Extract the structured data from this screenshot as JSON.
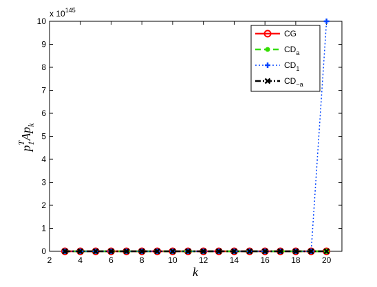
{
  "chart_data": {
    "type": "line",
    "xlabel": "k",
    "ylabel": {
      "base": "p",
      "sub1": "1",
      "sup": "T",
      "mid": "Ap",
      "sub2": "k"
    },
    "y_exponent": {
      "base": "x 10",
      "power": "145"
    },
    "x": [
      3,
      4,
      5,
      6,
      7,
      8,
      9,
      10,
      11,
      12,
      13,
      14,
      15,
      16,
      17,
      18,
      19,
      20
    ],
    "series": [
      {
        "name": "CG",
        "color": "#ff0000",
        "dash": "solid",
        "marker": "circle",
        "values": [
          0,
          0,
          0,
          0,
          0,
          0,
          0,
          0,
          0,
          0,
          0,
          0,
          0,
          0,
          0,
          0,
          0,
          0
        ]
      },
      {
        "name": "CD",
        "name_subscript": "a",
        "color": "#33dd00",
        "dash": "dashed",
        "marker": "dot",
        "values": [
          0,
          0,
          0,
          0,
          0,
          0,
          0,
          0,
          0,
          0,
          0,
          0,
          0,
          0,
          0,
          0,
          0,
          0
        ]
      },
      {
        "name": "CD",
        "name_subscript": "1",
        "color": "#0044ff",
        "dash": "dotted",
        "marker": "plus",
        "values": [
          0,
          0,
          0,
          0,
          0,
          0,
          0,
          0,
          0,
          0,
          0,
          0,
          0,
          0,
          0,
          0,
          0,
          10
        ]
      },
      {
        "name": "CD",
        "name_subscript": "−a",
        "color": "#000000",
        "dash": "dashdot",
        "marker": "cross",
        "values": [
          0,
          0,
          0,
          0,
          0,
          0,
          0,
          0,
          0,
          0,
          0,
          0,
          0,
          0,
          0,
          0,
          0,
          0
        ]
      }
    ],
    "xlim": [
      2,
      21
    ],
    "ylim": [
      0,
      10
    ],
    "xticks": [
      2,
      4,
      6,
      8,
      10,
      12,
      14,
      16,
      18,
      20
    ],
    "yticks": [
      0,
      1,
      2,
      3,
      4,
      5,
      6,
      7,
      8,
      9,
      10
    ],
    "grid": false,
    "legend_position": "upper-right"
  }
}
